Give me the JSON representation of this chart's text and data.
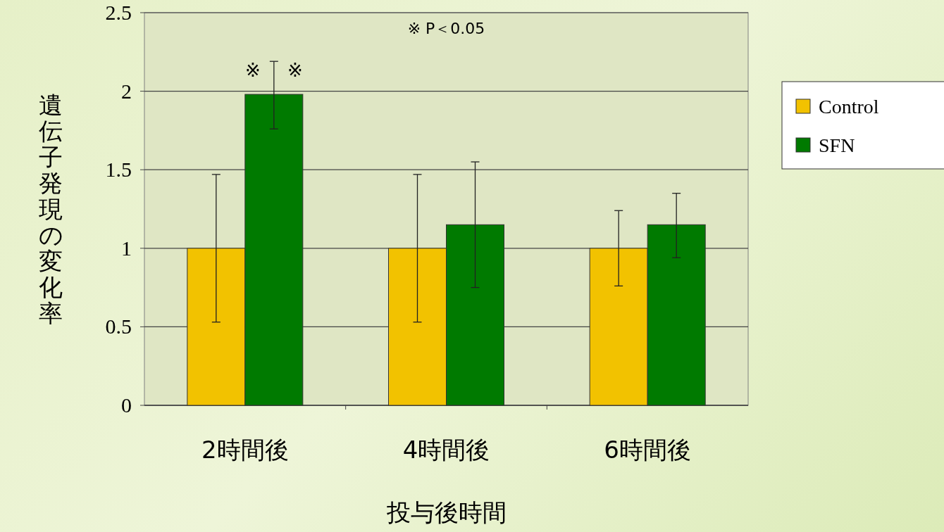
{
  "chart_data": {
    "type": "bar",
    "categories": [
      "2時間後",
      "4時間後",
      "6時間後"
    ],
    "series": [
      {
        "name": "Control",
        "color": "#f2c200",
        "values": [
          1,
          1,
          1
        ],
        "errors": [
          0.47,
          0.47,
          0.24
        ]
      },
      {
        "name": "SFN",
        "color": "#007a00",
        "values": [
          1.98,
          1.15,
          1.15
        ],
        "errors": [
          [
            1.76,
            2.19
          ],
          [
            0.75,
            1.55
          ],
          [
            0.94,
            1.35
          ]
        ]
      }
    ],
    "xlabel": "投与後時間",
    "ylabel": "遺伝子発現の変化率",
    "ylim": [
      0,
      2.5
    ],
    "yticks": [
      0,
      0.5,
      1,
      1.5,
      2,
      2.5
    ],
    "annotations": [
      "※ P＜0.05",
      "※",
      "※"
    ],
    "grid": "y",
    "legend": "top right"
  }
}
